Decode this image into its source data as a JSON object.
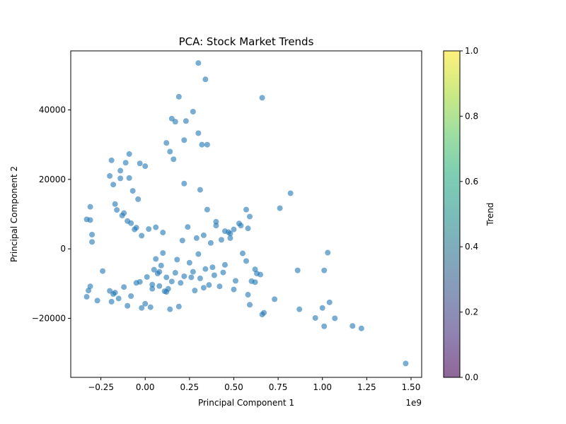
{
  "chart_data": {
    "type": "scatter",
    "title": "PCA: Stock Market Trends",
    "xlabel": "Principal Component 1",
    "ylabel": "Principal Component 2",
    "x_offset_label": "1e9",
    "xlim": [
      -0.42,
      1.56
    ],
    "ylim": [
      -37000,
      57000
    ],
    "xticks": [
      -0.25,
      0.0,
      0.25,
      0.5,
      0.75,
      1.0,
      1.25,
      1.5
    ],
    "xtick_labels": [
      "−0.25",
      "0.00",
      "0.25",
      "0.50",
      "0.75",
      "1.00",
      "1.25",
      "1.50"
    ],
    "yticks": [
      -20000,
      0,
      20000,
      40000
    ],
    "ytick_labels": [
      "−20000",
      "0",
      "20000",
      "40000"
    ],
    "grid": false,
    "point_color": "#1f77b4",
    "point_alpha": 0.6,
    "colorbar": {
      "label": "Trend",
      "range": [
        0.0,
        1.0
      ],
      "ticks": [
        0.0,
        0.2,
        0.4,
        0.6,
        0.8,
        1.0
      ],
      "tick_labels": [
        "0.0",
        "0.2",
        "0.4",
        "0.6",
        "0.8",
        "1.0"
      ],
      "colormap": "viridis",
      "alpha": 0.6
    },
    "series": [
      {
        "x": [
          0.3,
          0.34,
          0.66,
          0.19,
          0.27,
          0.15,
          0.23,
          0.17,
          0.3,
          0.22,
          0.32,
          0.35,
          0.12,
          0.14,
          0.16,
          0.22,
          0.31,
          0.82,
          0.76,
          0.35,
          0.57,
          0.59,
          0.58,
          0.53,
          0.54,
          0.45,
          0.5,
          0.48,
          -0.33,
          -0.31,
          -0.31,
          -0.3,
          -0.3,
          1.03,
          1.01,
          0.86,
          0.62,
          0.63,
          0.65,
          0.55,
          0.57,
          1.04,
          1.0,
          0.87,
          0.96,
          1.07,
          1.01,
          1.17,
          1.22,
          1.47,
          0.66,
          0.67,
          0.73,
          0.58,
          0.59,
          0.14,
          0.19,
          -0.31,
          -0.32,
          -0.33,
          -0.24,
          -0.27,
          -0.2,
          -0.18,
          -0.19,
          -0.1,
          -0.02,
          0.0,
          0.03,
          0.04,
          0.08,
          0.12,
          0.28,
          0.33,
          0.42,
          0.5,
          0.51,
          0.6,
          0.62,
          0.39,
          0.45,
          0.11,
          0.13,
          0.2,
          0.26,
          0.36,
          0.38,
          0.44,
          0.21,
          0.29,
          0.24,
          0.4,
          0.47,
          0.43,
          0.33,
          0.37,
          0.4,
          0.48,
          0.3,
          0.25,
          0.18,
          0.1,
          0.06,
          0.09,
          0.27,
          0.34,
          0.31,
          0.22,
          0.15,
          0.08,
          0.05,
          0.12,
          0.17,
          0.07,
          -0.05,
          -0.12,
          -0.17,
          -0.15,
          -0.08,
          -0.03,
          0.01,
          0.04,
          -0.2,
          -0.18,
          -0.14,
          -0.11,
          -0.09,
          -0.07,
          -0.04,
          -0.16,
          -0.13,
          -0.1,
          -0.06,
          -0.02,
          -0.19,
          -0.17,
          -0.12,
          -0.08,
          -0.05,
          0.02,
          0.06,
          0.1,
          -0.14,
          -0.09,
          -0.03,
          0.0
        ],
        "y": [
          53500,
          48800,
          43500,
          43800,
          39500,
          37500,
          36800,
          36600,
          33300,
          31300,
          30000,
          30000,
          30500,
          28000,
          25800,
          18800,
          17000,
          16000,
          11700,
          11300,
          11300,
          9300,
          5900,
          7300,
          6700,
          5100,
          5600,
          3100,
          8500,
          12100,
          8300,
          4100,
          2000,
          -1100,
          -6200,
          -6200,
          -5900,
          -7100,
          -7400,
          -1300,
          -3500,
          -15400,
          -17000,
          -17400,
          -19900,
          -20000,
          -22300,
          -22200,
          -22900,
          -33000,
          -18900,
          -18400,
          -14500,
          -13200,
          -16100,
          -17400,
          -16600,
          -10800,
          -12000,
          -13800,
          -6400,
          -14900,
          -12100,
          -13000,
          -15200,
          -16400,
          -17000,
          -15800,
          -16800,
          -11500,
          -10700,
          -12400,
          -12000,
          -11200,
          -10800,
          -11700,
          -9200,
          -9300,
          -9600,
          -7600,
          -4600,
          -12200,
          -11500,
          -9800,
          -8200,
          -10400,
          -5300,
          -6800,
          2400,
          3100,
          6300,
          7800,
          4800,
          2600,
          3900,
          1700,
          6700,
          4400,
          -1500,
          -4000,
          -3100,
          -1200,
          -2900,
          -4800,
          -6600,
          -5800,
          -8500,
          -7900,
          -9400,
          -6600,
          -6000,
          -8200,
          -6900,
          -7100,
          -9800,
          -11000,
          -12600,
          -14300,
          -13600,
          -9500,
          -8100,
          -10300,
          21000,
          18500,
          22500,
          24800,
          20400,
          16700,
          14300,
          11200,
          9600,
          8000,
          5600,
          3800,
          25500,
          12900,
          10300,
          7400,
          6100,
          5700,
          6200,
          4700,
          20300,
          27300,
          24600,
          23800
        ]
      }
    ]
  }
}
